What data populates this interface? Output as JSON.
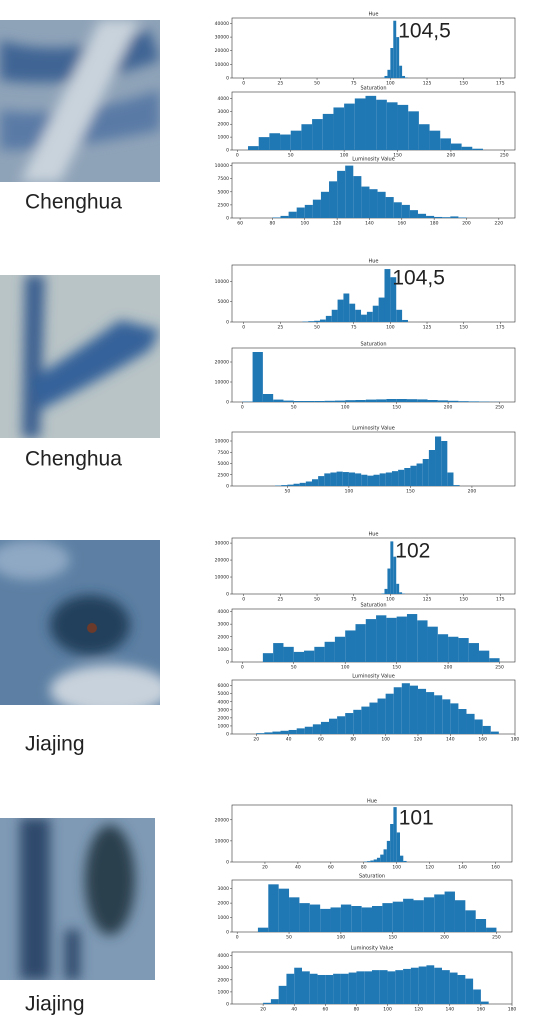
{
  "labels": [
    "Chenghua",
    "Chenghua",
    "Jiajing",
    "Jiajing"
  ],
  "chart_data": [
    {
      "type": "histogram",
      "title": "Hue",
      "annotation": "104,5",
      "color": "#1f77b4",
      "bins": [
        94,
        96,
        98,
        100,
        102,
        104,
        106,
        108,
        110,
        112
      ],
      "counts": [
        200,
        1500,
        6000,
        22000,
        42000,
        30000,
        9000,
        1500,
        300
      ],
      "xlim": [
        -8,
        185
      ],
      "xticks": [
        0,
        25,
        50,
        75,
        100,
        125,
        150,
        175
      ],
      "ylim": [
        0,
        44000
      ],
      "yticks": [
        0,
        10000,
        20000,
        30000,
        40000
      ]
    },
    {
      "type": "histogram",
      "title": "Saturation",
      "color": "#1f77b4",
      "bins": [
        10,
        20,
        30,
        40,
        50,
        60,
        70,
        80,
        90,
        100,
        110,
        120,
        130,
        140,
        150,
        160,
        170,
        180,
        190,
        200,
        210,
        220,
        230
      ],
      "counts": [
        300,
        1000,
        1300,
        1200,
        1500,
        2000,
        2400,
        2800,
        3300,
        3600,
        4000,
        4200,
        3900,
        3700,
        3500,
        3000,
        2000,
        1500,
        900,
        500,
        250,
        100
      ],
      "xlim": [
        -5,
        260
      ],
      "xticks": [
        0,
        50,
        100,
        150,
        200,
        250
      ],
      "ylim": [
        0,
        4500
      ],
      "yticks": [
        0,
        1000,
        2000,
        3000,
        4000
      ]
    },
    {
      "type": "histogram",
      "title": "Luminosity Value",
      "color": "#1f77b4",
      "bins": [
        80,
        85,
        90,
        95,
        100,
        105,
        110,
        115,
        120,
        125,
        130,
        135,
        140,
        145,
        150,
        155,
        160,
        165,
        170,
        175,
        180,
        185,
        190,
        195,
        200
      ],
      "counts": [
        100,
        400,
        1200,
        2000,
        2500,
        3500,
        5000,
        7000,
        9000,
        10000,
        8000,
        6000,
        5500,
        5000,
        4000,
        3000,
        2500,
        1500,
        800,
        400,
        200,
        150,
        300,
        100
      ],
      "xlim": [
        55,
        230
      ],
      "xticks": [
        60,
        80,
        100,
        120,
        140,
        160,
        180,
        200,
        220
      ],
      "ylim": [
        0,
        10500
      ],
      "yticks": [
        0,
        2500,
        5000,
        7500,
        10000
      ]
    },
    {
      "type": "histogram",
      "title": "Hue",
      "annotation": "104,5",
      "color": "#1f77b4",
      "bins": [
        40,
        44,
        48,
        52,
        56,
        60,
        64,
        68,
        72,
        76,
        80,
        84,
        88,
        92,
        96,
        100,
        104,
        108,
        112
      ],
      "counts": [
        100,
        200,
        300,
        600,
        1500,
        3000,
        5500,
        7000,
        4500,
        3000,
        1800,
        2500,
        4000,
        6000,
        13000,
        11000,
        3000,
        500
      ],
      "xlim": [
        -8,
        185
      ],
      "xticks": [
        0,
        25,
        50,
        75,
        100,
        125,
        150,
        175
      ],
      "ylim": [
        0,
        14000
      ],
      "yticks": [
        0,
        5000,
        10000
      ]
    },
    {
      "type": "histogram",
      "title": "Saturation",
      "color": "#1f77b4",
      "bins": [
        0,
        10,
        20,
        30,
        40,
        50,
        60,
        70,
        80,
        90,
        100,
        110,
        120,
        130,
        140,
        150,
        160,
        170,
        180,
        190,
        200,
        210,
        220,
        230,
        240,
        250
      ],
      "counts": [
        200,
        25000,
        4000,
        1200,
        700,
        500,
        500,
        500,
        600,
        700,
        900,
        1000,
        1200,
        1300,
        1500,
        1500,
        1400,
        1300,
        1000,
        800,
        600,
        400,
        300,
        200,
        100
      ],
      "xlim": [
        -10,
        265
      ],
      "xticks": [
        0,
        50,
        100,
        150,
        200,
        250
      ],
      "ylim": [
        0,
        27000
      ],
      "yticks": [
        0,
        10000,
        20000
      ]
    },
    {
      "type": "histogram",
      "title": "Luminosity Value",
      "color": "#1f77b4",
      "bins": [
        40,
        45,
        50,
        55,
        60,
        65,
        70,
        75,
        80,
        85,
        90,
        95,
        100,
        105,
        110,
        115,
        120,
        125,
        130,
        135,
        140,
        145,
        150,
        155,
        160,
        165,
        170,
        175,
        180,
        185,
        190
      ],
      "counts": [
        100,
        200,
        300,
        500,
        700,
        1000,
        1500,
        2200,
        2800,
        3000,
        3200,
        3100,
        3000,
        2800,
        2500,
        2300,
        2500,
        2800,
        3000,
        3300,
        3600,
        4000,
        4500,
        5000,
        6000,
        8000,
        11000,
        10000,
        3000,
        200
      ],
      "xlim": [
        5,
        235
      ],
      "xticks": [
        50,
        100,
        150,
        200
      ],
      "ylim": [
        0,
        12000
      ],
      "yticks": [
        0,
        2500,
        5000,
        7500,
        10000
      ]
    },
    {
      "type": "histogram",
      "title": "Hue",
      "annotation": "102",
      "color": "#1f77b4",
      "bins": [
        94,
        96,
        98,
        100,
        102,
        104,
        106,
        108,
        110
      ],
      "counts": [
        300,
        3000,
        15000,
        31000,
        22000,
        6000,
        1000,
        200
      ],
      "xlim": [
        -8,
        185
      ],
      "xticks": [
        0,
        25,
        50,
        75,
        100,
        125,
        150,
        175
      ],
      "ylim": [
        0,
        33000
      ],
      "yticks": [
        0,
        10000,
        20000,
        30000
      ]
    },
    {
      "type": "histogram",
      "title": "Saturation",
      "color": "#1f77b4",
      "bins": [
        20,
        30,
        40,
        50,
        60,
        70,
        80,
        90,
        100,
        110,
        120,
        130,
        140,
        150,
        160,
        170,
        180,
        190,
        200,
        210,
        220,
        230,
        240,
        250
      ],
      "counts": [
        700,
        1500,
        1200,
        800,
        900,
        1200,
        1600,
        2000,
        2500,
        3000,
        3400,
        3700,
        3500,
        3600,
        3800,
        3300,
        2800,
        2200,
        2000,
        1900,
        1500,
        900,
        300
      ],
      "xlim": [
        -10,
        265
      ],
      "xticks": [
        0,
        50,
        100,
        150,
        200,
        250
      ],
      "ylim": [
        0,
        4200
      ],
      "yticks": [
        0,
        1000,
        2000,
        3000,
        4000
      ]
    },
    {
      "type": "histogram",
      "title": "Luminosity Value",
      "color": "#1f77b4",
      "bins": [
        20,
        25,
        30,
        35,
        40,
        45,
        50,
        55,
        60,
        65,
        70,
        75,
        80,
        85,
        90,
        95,
        100,
        105,
        110,
        115,
        120,
        125,
        130,
        135,
        140,
        145,
        150,
        155,
        160,
        165,
        170
      ],
      "counts": [
        100,
        200,
        300,
        400,
        500,
        700,
        900,
        1200,
        1500,
        1900,
        2200,
        2600,
        3000,
        3400,
        3900,
        4400,
        5000,
        5800,
        6300,
        6000,
        5600,
        5200,
        4800,
        4300,
        3800,
        3100,
        2500,
        1800,
        1000,
        300
      ],
      "xlim": [
        5,
        180
      ],
      "xticks": [
        20,
        40,
        60,
        80,
        100,
        120,
        140,
        160,
        180
      ],
      "ylim": [
        0,
        6700
      ],
      "yticks": [
        0,
        1000,
        2000,
        3000,
        4000,
        5000,
        6000
      ]
    },
    {
      "type": "histogram",
      "title": "Hue",
      "annotation": "101",
      "color": "#1f77b4",
      "bins": [
        80,
        82,
        84,
        86,
        88,
        90,
        92,
        94,
        96,
        98,
        100,
        102,
        104,
        106
      ],
      "counts": [
        200,
        400,
        700,
        1200,
        2000,
        3500,
        6000,
        10000,
        18000,
        26000,
        14000,
        3000,
        500
      ],
      "xlim": [
        0,
        170
      ],
      "xticks": [
        20,
        40,
        60,
        80,
        100,
        120,
        140,
        160
      ],
      "ylim": [
        0,
        27000
      ],
      "yticks": [
        0,
        10000,
        20000
      ]
    },
    {
      "type": "histogram",
      "title": "Saturation",
      "color": "#1f77b4",
      "bins": [
        20,
        30,
        40,
        50,
        60,
        70,
        80,
        90,
        100,
        110,
        120,
        130,
        140,
        150,
        160,
        170,
        180,
        190,
        200,
        210,
        220,
        230,
        240,
        250
      ],
      "counts": [
        300,
        3300,
        3000,
        2400,
        2000,
        1900,
        1600,
        1700,
        1900,
        1800,
        1700,
        1800,
        2000,
        2100,
        2300,
        2200,
        2400,
        2600,
        2800,
        2200,
        1500,
        900,
        300
      ],
      "xlim": [
        -5,
        265
      ],
      "xticks": [
        0,
        50,
        100,
        150,
        200,
        250
      ],
      "ylim": [
        0,
        3600
      ],
      "yticks": [
        0,
        1000,
        2000,
        3000
      ]
    },
    {
      "type": "histogram",
      "title": "Luminosity Value",
      "color": "#1f77b4",
      "bins": [
        20,
        25,
        30,
        35,
        40,
        45,
        50,
        55,
        60,
        65,
        70,
        75,
        80,
        85,
        90,
        95,
        100,
        105,
        110,
        115,
        120,
        125,
        130,
        135,
        140,
        145,
        150,
        155,
        160,
        165
      ],
      "counts": [
        100,
        400,
        1500,
        2500,
        3000,
        2700,
        2500,
        2400,
        2400,
        2500,
        2500,
        2600,
        2700,
        2700,
        2800,
        2800,
        2700,
        2800,
        2900,
        3000,
        3100,
        3200,
        3000,
        2800,
        2600,
        2400,
        2100,
        1200,
        200
      ],
      "xlim": [
        0,
        180
      ],
      "xticks": [
        20,
        40,
        60,
        80,
        100,
        120,
        140,
        160,
        180
      ],
      "ylim": [
        0,
        4300
      ],
      "yticks": [
        0,
        1000,
        2000,
        3000,
        4000
      ]
    }
  ]
}
